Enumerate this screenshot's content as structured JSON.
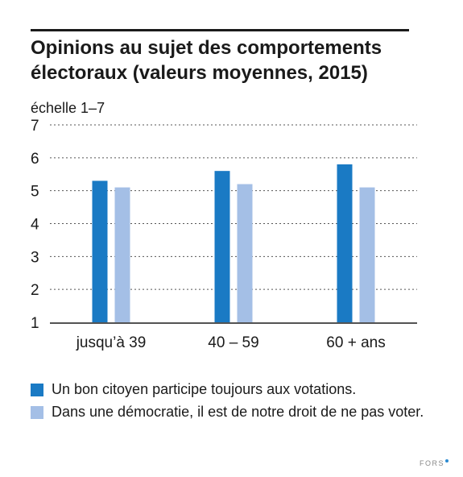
{
  "chart_data": {
    "type": "bar",
    "title": "Opinions au sujet des comportements électoraux (valeurs moyennes, 2015)",
    "ylabel": "échelle 1–7",
    "xlabel": "",
    "ylim": [
      1,
      7
    ],
    "yticks": [
      "1",
      "2",
      "3",
      "4",
      "5",
      "6",
      "7"
    ],
    "grid": true,
    "legend_position": "bottom",
    "categories": [
      "jusqu’à 39",
      "40 – 59",
      "60 + ans"
    ],
    "series": [
      {
        "name": "Un bon citoyen participe toujours aux votations.",
        "color": "#1a7ac4",
        "values": [
          5.3,
          5.6,
          5.8
        ]
      },
      {
        "name": "Dans une démocratie, il est de notre droit de ne pas voter.",
        "color": "#a4bfe6",
        "values": [
          5.1,
          5.2,
          5.1
        ]
      }
    ]
  },
  "credit": {
    "text": "FORS"
  }
}
